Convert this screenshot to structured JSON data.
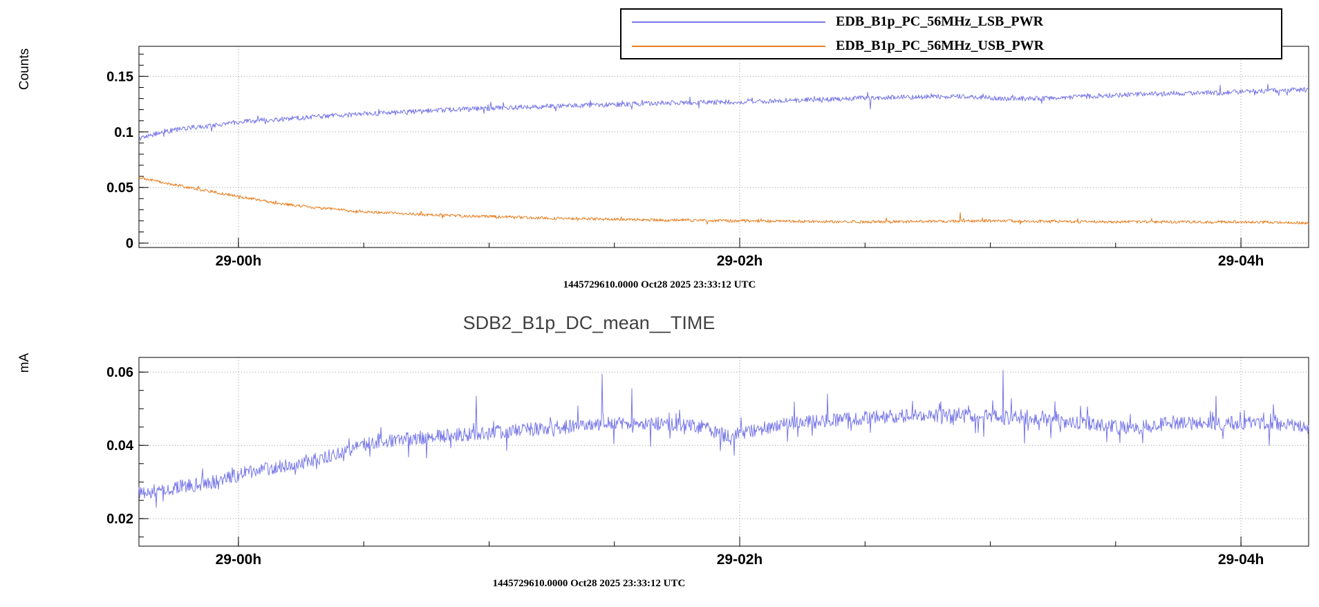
{
  "page": {
    "background": "#ffffff"
  },
  "chart_data": [
    {
      "type": "line",
      "title": "",
      "ylabel": "Counts",
      "xlabel": "",
      "timestamp": "1445729610.0000 Oct28 2025 23:33:12 UTC",
      "grid": true,
      "legend_position": "top",
      "xlim": [
        -0.397,
        4.27
      ],
      "ylim": [
        -0.004,
        0.177
      ],
      "xticks": [
        {
          "t": 0,
          "label": "29-00h"
        },
        {
          "t": 2,
          "label": "29-02h"
        },
        {
          "t": 4,
          "label": "29-04h"
        }
      ],
      "yticks": [
        {
          "v": 0,
          "label": "0"
        },
        {
          "v": 0.05,
          "label": "0.05"
        },
        {
          "v": 0.1,
          "label": "0.1"
        },
        {
          "v": 0.15,
          "label": "0.15"
        }
      ],
      "series": [
        {
          "name": "EDB_B1p_PC_56MHz_LSB_PWR",
          "color": "#7777e8",
          "noise": 0.0022,
          "spike_prob": 0.03,
          "spike_scale": 2.2,
          "points": [
            [
              -0.4,
              0.094
            ],
            [
              -0.32,
              0.099
            ],
            [
              -0.22,
              0.103
            ],
            [
              -0.1,
              0.106
            ],
            [
              0.0,
              0.109
            ],
            [
              0.2,
              0.112
            ],
            [
              0.4,
              0.115
            ],
            [
              0.6,
              0.117
            ],
            [
              0.85,
              0.12
            ],
            [
              1.1,
              0.122
            ],
            [
              1.4,
              0.124
            ],
            [
              1.7,
              0.126
            ],
            [
              2.0,
              0.127
            ],
            [
              2.3,
              0.129
            ],
            [
              2.6,
              0.131
            ],
            [
              2.9,
              0.132
            ],
            [
              3.05,
              0.13
            ],
            [
              3.2,
              0.13
            ],
            [
              3.4,
              0.132
            ],
            [
              3.6,
              0.134
            ],
            [
              3.9,
              0.135
            ],
            [
              4.1,
              0.137
            ],
            [
              4.27,
              0.138
            ]
          ],
          "spikes": [
            [
              2.52,
              0.1205
            ]
          ]
        },
        {
          "name": "EDB_B1p_PC_56MHz_USB_PWR",
          "color": "#e87d1e",
          "noise": 0.0013,
          "spike_prob": 0.03,
          "spike_scale": 2.0,
          "points": [
            [
              -0.4,
              0.059
            ],
            [
              -0.33,
              0.056
            ],
            [
              -0.25,
              0.052
            ],
            [
              -0.15,
              0.048
            ],
            [
              -0.05,
              0.044
            ],
            [
              0.05,
              0.04
            ],
            [
              0.15,
              0.036
            ],
            [
              0.3,
              0.032
            ],
            [
              0.45,
              0.029
            ],
            [
              0.6,
              0.027
            ],
            [
              0.8,
              0.025
            ],
            [
              1.0,
              0.024
            ],
            [
              1.3,
              0.022
            ],
            [
              1.6,
              0.021
            ],
            [
              2.0,
              0.02
            ],
            [
              2.5,
              0.019
            ],
            [
              3.0,
              0.02
            ],
            [
              3.5,
              0.019
            ],
            [
              4.0,
              0.019
            ],
            [
              4.27,
              0.018
            ]
          ],
          "spikes": [
            [
              2.88,
              0.0275
            ]
          ]
        }
      ]
    },
    {
      "type": "line",
      "title": "SDB2_B1p_DC_mean__TIME",
      "ylabel": "mA",
      "xlabel": "",
      "timestamp": "1445729610.0000 Oct28 2025 23:33:12 UTC",
      "grid": true,
      "legend_position": "none",
      "xlim": [
        -0.397,
        4.27
      ],
      "ylim": [
        0.0125,
        0.064
      ],
      "xticks": [
        {
          "t": 0,
          "label": "29-00h"
        },
        {
          "t": 2,
          "label": "29-02h"
        },
        {
          "t": 4,
          "label": "29-04h"
        }
      ],
      "yticks": [
        {
          "v": 0.02,
          "label": "0.02"
        },
        {
          "v": 0.04,
          "label": "0.04"
        },
        {
          "v": 0.06,
          "label": "0.06"
        }
      ],
      "series": [
        {
          "name": "SDB2_B1p_DC_mean",
          "color": "#7777e8",
          "noise": 0.0019,
          "spike_prob": 0.08,
          "spike_scale": 2.6,
          "points": [
            [
              -0.4,
              0.027
            ],
            [
              -0.3,
              0.028
            ],
            [
              -0.2,
              0.029
            ],
            [
              -0.1,
              0.03
            ],
            [
              0.0,
              0.032
            ],
            [
              0.15,
              0.034
            ],
            [
              0.3,
              0.036
            ],
            [
              0.45,
              0.039
            ],
            [
              0.55,
              0.041
            ],
            [
              0.7,
              0.042
            ],
            [
              0.9,
              0.043
            ],
            [
              1.1,
              0.044
            ],
            [
              1.3,
              0.045
            ],
            [
              1.5,
              0.046
            ],
            [
              1.7,
              0.046
            ],
            [
              1.85,
              0.045
            ],
            [
              1.95,
              0.0425
            ],
            [
              2.05,
              0.044
            ],
            [
              2.2,
              0.046
            ],
            [
              2.4,
              0.047
            ],
            [
              2.6,
              0.048
            ],
            [
              2.8,
              0.048
            ],
            [
              3.0,
              0.048
            ],
            [
              3.2,
              0.047
            ],
            [
              3.4,
              0.046
            ],
            [
              3.55,
              0.0445
            ],
            [
              3.7,
              0.046
            ],
            [
              3.9,
              0.046
            ],
            [
              4.1,
              0.046
            ],
            [
              4.27,
              0.045
            ]
          ],
          "spikes": [
            [
              0.95,
              0.0535
            ],
            [
              1.45,
              0.0595
            ],
            [
              1.57,
              0.0555
            ],
            [
              2.35,
              0.054
            ],
            [
              3.05,
              0.0605
            ],
            [
              3.9,
              0.0535
            ]
          ]
        }
      ]
    }
  ]
}
